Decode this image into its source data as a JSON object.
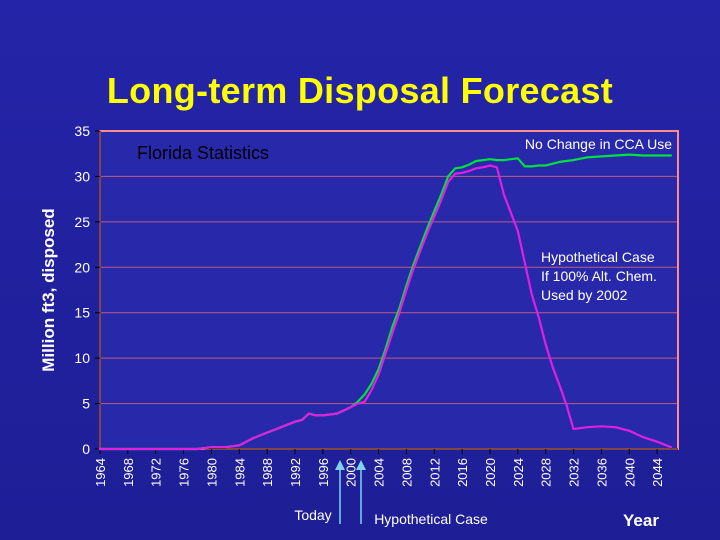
{
  "title": "Long-term Disposal Forecast",
  "chart_data": {
    "type": "line",
    "subtitle": "Florida Statistics",
    "ylabel": "Million ft3, disposed",
    "xlabel": "Year",
    "ylim": [
      0,
      35
    ],
    "xlim": [
      1964,
      2047
    ],
    "y_ticks": [
      0,
      5,
      10,
      15,
      20,
      25,
      30,
      35
    ],
    "x_ticks": [
      1964,
      1968,
      1972,
      1976,
      1980,
      1984,
      1988,
      1992,
      1996,
      2000,
      2004,
      2008,
      2012,
      2016,
      2020,
      2024,
      2028,
      2032,
      2036,
      2040,
      2044
    ],
    "grid": "horizontal",
    "colors": {
      "plot_bg": "#2828aa",
      "plot_border": "#ff8c8c",
      "grid": "#c05a80",
      "text": "#ffffff",
      "title": "#ffff00",
      "axis": "#000000",
      "marker": "#7fd3f0"
    },
    "series": [
      {
        "color": "#00e040",
        "x": [
          1964,
          1978,
          1980,
          1982,
          1984,
          1986,
          1988,
          1990,
          1992,
          1993,
          1994,
          1995,
          1996,
          1998,
          2000,
          2001,
          2002,
          2003,
          2004,
          2005,
          2006,
          2007,
          2008,
          2009,
          2010,
          2011,
          2012,
          2013,
          2014,
          2015,
          2016,
          2017,
          2018,
          2019,
          2020,
          2021,
          2022,
          2023,
          2024,
          2025,
          2026,
          2027,
          2028,
          2029,
          2030,
          2032,
          2034,
          2036,
          2038,
          2040,
          2042,
          2044,
          2046
        ],
        "values": [
          0,
          0,
          0.2,
          0.2,
          0.4,
          1.2,
          1.8,
          2.4,
          3.0,
          3.2,
          3.9,
          3.7,
          3.7,
          3.9,
          4.6,
          5.2,
          6.0,
          7.2,
          8.8,
          11.0,
          13.5,
          15.5,
          18.0,
          20.3,
          22.3,
          24.3,
          26.2,
          28.0,
          30.0,
          30.9,
          31.0,
          31.3,
          31.7,
          31.8,
          31.9,
          31.8,
          31.8,
          31.9,
          32.0,
          31.1,
          31.1,
          31.2,
          31.2,
          31.4,
          31.6,
          31.8,
          32.1,
          32.2,
          32.3,
          32.4,
          32.3,
          32.3,
          32.3
        ]
      },
      {
        "color": "#e020e0",
        "x": [
          1964,
          1978,
          1980,
          1982,
          1984,
          1986,
          1988,
          1990,
          1992,
          1993,
          1994,
          1995,
          1996,
          1998,
          2000,
          2001,
          2002,
          2003,
          2004,
          2005,
          2006,
          2007,
          2008,
          2009,
          2010,
          2011,
          2012,
          2013,
          2014,
          2015,
          2016,
          2017,
          2018,
          2019,
          2020,
          2021,
          2022,
          2023,
          2024,
          2025,
          2026,
          2027,
          2028,
          2029,
          2030,
          2031,
          2032,
          2034,
          2036,
          2038,
          2040,
          2042,
          2044,
          2046
        ],
        "values": [
          0,
          0,
          0.2,
          0.2,
          0.4,
          1.2,
          1.8,
          2.4,
          3.0,
          3.2,
          3.9,
          3.7,
          3.7,
          3.9,
          4.6,
          5.0,
          5.2,
          6.5,
          8.2,
          10.5,
          12.8,
          15.0,
          17.5,
          19.8,
          21.8,
          23.8,
          25.6,
          27.4,
          29.4,
          30.3,
          30.4,
          30.6,
          30.9,
          31.0,
          31.2,
          31.0,
          28.0,
          26.0,
          24.0,
          20.5,
          17.0,
          14.5,
          11.5,
          9.0,
          7.0,
          4.8,
          2.2,
          2.4,
          2.5,
          2.4,
          2.0,
          1.3,
          0.8,
          0.2
        ]
      }
    ],
    "annotations": [
      {
        "text": "Florida Statistics"
      },
      {
        "text": "No Change in CCA Use"
      },
      {
        "text": "Hypothetical Case"
      },
      {
        "text": "If 100% Alt. Chem."
      },
      {
        "text": "Used by 2002"
      }
    ],
    "markers": [
      {
        "label": "Today",
        "x": 1999
      },
      {
        "label": "Hypothetical Case",
        "x": 2002
      }
    ]
  }
}
